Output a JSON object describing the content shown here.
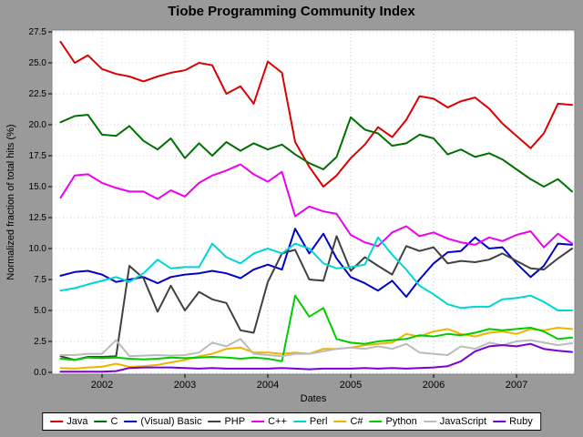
{
  "title": "Tiobe Programming Community Index",
  "axes": {
    "xlabel": "Dates",
    "ylabel": "Normalized fraction of total hits (%)",
    "yticks": [
      0.0,
      2.5,
      5.0,
      7.5,
      10.0,
      12.5,
      15.0,
      17.5,
      20.0,
      22.5,
      25.0,
      27.5
    ],
    "xticks": [
      2002,
      2003,
      2004,
      2005,
      2006,
      2007
    ]
  },
  "chart_data": {
    "type": "line",
    "title": "Tiobe Programming Community Index",
    "xlabel": "Dates",
    "ylabel": "Normalized fraction of total hits (%)",
    "ylim": [
      0,
      27.5
    ],
    "xlim": [
      2001.45,
      2007.7
    ],
    "grid": "dotted",
    "legend_position": "bottom",
    "x": [
      2001.5,
      2001.67,
      2001.83,
      2002,
      2002.17,
      2002.33,
      2002.5,
      2002.67,
      2002.83,
      2003,
      2003.17,
      2003.33,
      2003.5,
      2003.67,
      2003.83,
      2004,
      2004.17,
      2004.33,
      2004.5,
      2004.67,
      2004.83,
      2005,
      2005.17,
      2005.33,
      2005.5,
      2005.67,
      2005.83,
      2006,
      2006.17,
      2006.33,
      2006.5,
      2006.67,
      2006.83,
      2007,
      2007.17,
      2007.33,
      2007.5,
      2007.67
    ],
    "series": [
      {
        "name": "Java",
        "color": "#dd0000",
        "values": [
          26.7,
          25.0,
          25.6,
          24.5,
          24.1,
          23.9,
          23.5,
          23.9,
          24.2,
          24.4,
          25.0,
          24.8,
          22.5,
          23.1,
          21.7,
          25.1,
          24.2,
          18.6,
          16.6,
          15.0,
          15.9,
          17.3,
          18.4,
          19.8,
          19.0,
          20.4,
          22.3,
          22.1,
          21.4,
          21.9,
          22.2,
          21.3,
          20.1,
          19.1,
          18.1,
          19.3,
          21.7,
          21.6
        ]
      },
      {
        "name": "C",
        "color": "#007000",
        "values": [
          20.2,
          20.7,
          20.8,
          19.2,
          19.1,
          19.9,
          18.7,
          18.0,
          18.9,
          17.3,
          18.5,
          17.5,
          18.6,
          17.9,
          18.5,
          18.0,
          18.4,
          17.6,
          16.9,
          16.4,
          17.4,
          20.6,
          19.6,
          19.3,
          18.3,
          18.5,
          19.2,
          18.9,
          17.6,
          18.0,
          17.4,
          17.7,
          17.2,
          16.4,
          15.6,
          15.0,
          15.6,
          14.6
        ]
      },
      {
        "name": "(Visual) Basic",
        "color": "#0000cc",
        "values": [
          7.8,
          8.1,
          8.2,
          7.9,
          7.3,
          7.5,
          7.7,
          7.2,
          7.7,
          7.9,
          8.0,
          8.2,
          8.0,
          7.6,
          8.3,
          8.7,
          8.3,
          11.6,
          9.6,
          11.2,
          9.2,
          7.7,
          7.2,
          6.6,
          7.4,
          6.1,
          7.5,
          8.8,
          9.7,
          9.8,
          10.9,
          10.0,
          10.1,
          8.8,
          7.7,
          8.6,
          10.4,
          10.3
        ]
      },
      {
        "name": "PHP",
        "color": "#404040",
        "values": [
          1.3,
          1.0,
          1.25,
          1.25,
          1.3,
          8.6,
          7.6,
          4.9,
          7.0,
          5.0,
          6.5,
          5.9,
          5.6,
          3.4,
          3.2,
          7.3,
          9.6,
          9.9,
          7.5,
          7.4,
          11.0,
          8.2,
          9.3,
          8.6,
          7.9,
          10.2,
          9.8,
          10.1,
          8.8,
          9.0,
          8.9,
          9.1,
          9.6,
          9.0,
          8.4,
          8.3,
          9.2,
          10.0
        ]
      },
      {
        "name": "C++",
        "color": "#ee00ee",
        "values": [
          14.1,
          15.9,
          16.0,
          15.3,
          14.9,
          14.6,
          14.6,
          14.0,
          14.7,
          14.2,
          15.3,
          15.9,
          16.3,
          16.8,
          16.0,
          15.4,
          16.2,
          12.6,
          13.4,
          13.0,
          12.8,
          11.1,
          10.5,
          10.2,
          11.3,
          11.8,
          11.0,
          11.3,
          10.8,
          10.5,
          10.3,
          10.9,
          10.6,
          11.1,
          11.4,
          10.1,
          11.2,
          10.4
        ]
      },
      {
        "name": "Perl",
        "color": "#00d5d5",
        "values": [
          6.6,
          6.8,
          7.1,
          7.4,
          7.7,
          7.3,
          8.0,
          9.1,
          8.4,
          8.5,
          8.5,
          10.4,
          9.3,
          8.8,
          9.6,
          10.0,
          9.6,
          10.4,
          10.0,
          8.8,
          8.4,
          8.5,
          8.7,
          10.9,
          9.5,
          8.3,
          7.0,
          6.3,
          5.5,
          5.2,
          5.3,
          5.3,
          5.9,
          6.0,
          6.2,
          5.7,
          5.0,
          5.0
        ]
      },
      {
        "name": "C#",
        "color": "#f0b400",
        "values": [
          0.35,
          0.3,
          0.4,
          0.45,
          0.7,
          0.45,
          0.5,
          0.6,
          0.8,
          1.0,
          1.3,
          1.5,
          1.9,
          2.0,
          1.6,
          1.6,
          1.5,
          1.6,
          1.5,
          1.9,
          1.9,
          2.0,
          2.2,
          2.3,
          2.4,
          3.1,
          2.9,
          3.3,
          3.5,
          3.1,
          2.9,
          3.2,
          3.3,
          3.1,
          3.5,
          3.4,
          3.6,
          3.5
        ]
      },
      {
        "name": "Python",
        "color": "#00cc00",
        "values": [
          1.1,
          1.0,
          1.2,
          1.15,
          1.2,
          1.1,
          1.05,
          1.1,
          1.2,
          1.15,
          1.2,
          1.25,
          1.2,
          1.1,
          1.2,
          1.1,
          0.9,
          6.2,
          4.5,
          5.2,
          2.7,
          2.4,
          2.3,
          2.5,
          2.6,
          2.7,
          3.0,
          2.9,
          3.1,
          3.0,
          3.2,
          3.5,
          3.4,
          3.5,
          3.6,
          3.3,
          2.7,
          2.8
        ]
      },
      {
        "name": "JavaScript",
        "color": "#bbbbbb",
        "values": [
          1.4,
          1.4,
          1.5,
          1.5,
          2.6,
          1.3,
          1.35,
          1.4,
          1.35,
          1.4,
          1.6,
          2.4,
          2.1,
          2.7,
          1.5,
          1.4,
          1.3,
          1.5,
          1.5,
          1.7,
          1.9,
          2.0,
          1.9,
          2.1,
          1.9,
          2.3,
          1.6,
          1.5,
          1.4,
          2.1,
          1.9,
          2.4,
          2.2,
          2.5,
          2.6,
          2.4,
          2.2,
          2.35
        ]
      },
      {
        "name": "Ruby",
        "color": "#7700dd",
        "values": [
          0.05,
          0.05,
          0.05,
          0.05,
          0.1,
          0.35,
          0.4,
          0.4,
          0.4,
          0.35,
          0.3,
          0.35,
          0.3,
          0.3,
          0.3,
          0.3,
          0.35,
          0.3,
          0.25,
          0.3,
          0.3,
          0.3,
          0.35,
          0.3,
          0.35,
          0.3,
          0.35,
          0.4,
          0.5,
          0.9,
          1.7,
          2.1,
          2.2,
          2.1,
          2.3,
          1.9,
          1.75,
          1.65
        ]
      }
    ]
  },
  "colors": {
    "background": "#9a9a9a",
    "plot_background": "#ffffff",
    "frame": "#848484",
    "hgrid": "#dcc6c6",
    "vgrid": "#c6c6dc"
  }
}
